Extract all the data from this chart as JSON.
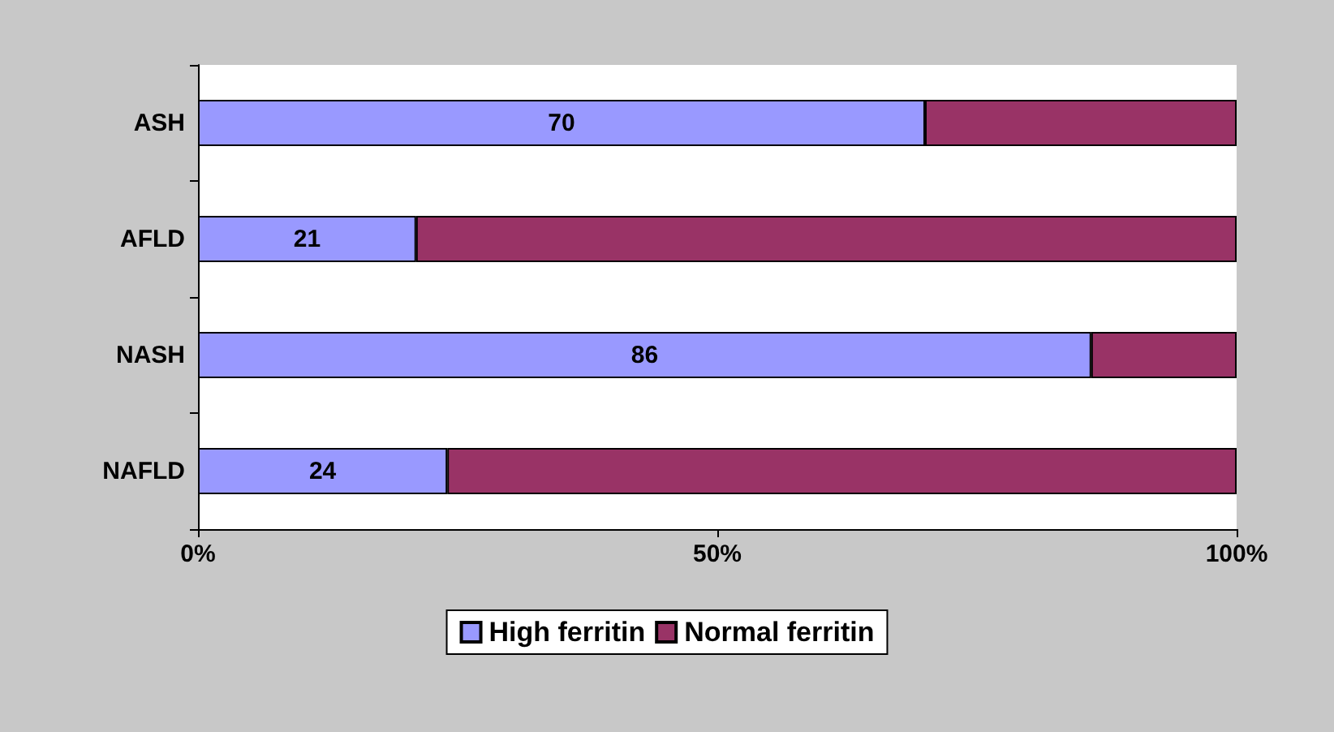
{
  "chart_data": {
    "type": "bar",
    "orientation": "horizontal",
    "stacked": true,
    "categories": [
      "ASH",
      "AFLD",
      "NASH",
      "NAFLD"
    ],
    "series": [
      {
        "name": "High ferritin",
        "color": "#9999ff",
        "values": [
          70,
          21,
          86,
          24
        ],
        "value_labels": [
          "70",
          "21",
          "86",
          "24"
        ]
      },
      {
        "name": "Normal ferritin",
        "color": "#993366",
        "values": [
          30,
          79,
          14,
          76
        ]
      }
    ],
    "xlim": [
      0,
      100
    ],
    "xticks": [
      {
        "value": 0,
        "label": "0%"
      },
      {
        "value": 50,
        "label": "50%"
      },
      {
        "value": 100,
        "label": "100%"
      }
    ],
    "grid": false,
    "legend": "bottom"
  }
}
